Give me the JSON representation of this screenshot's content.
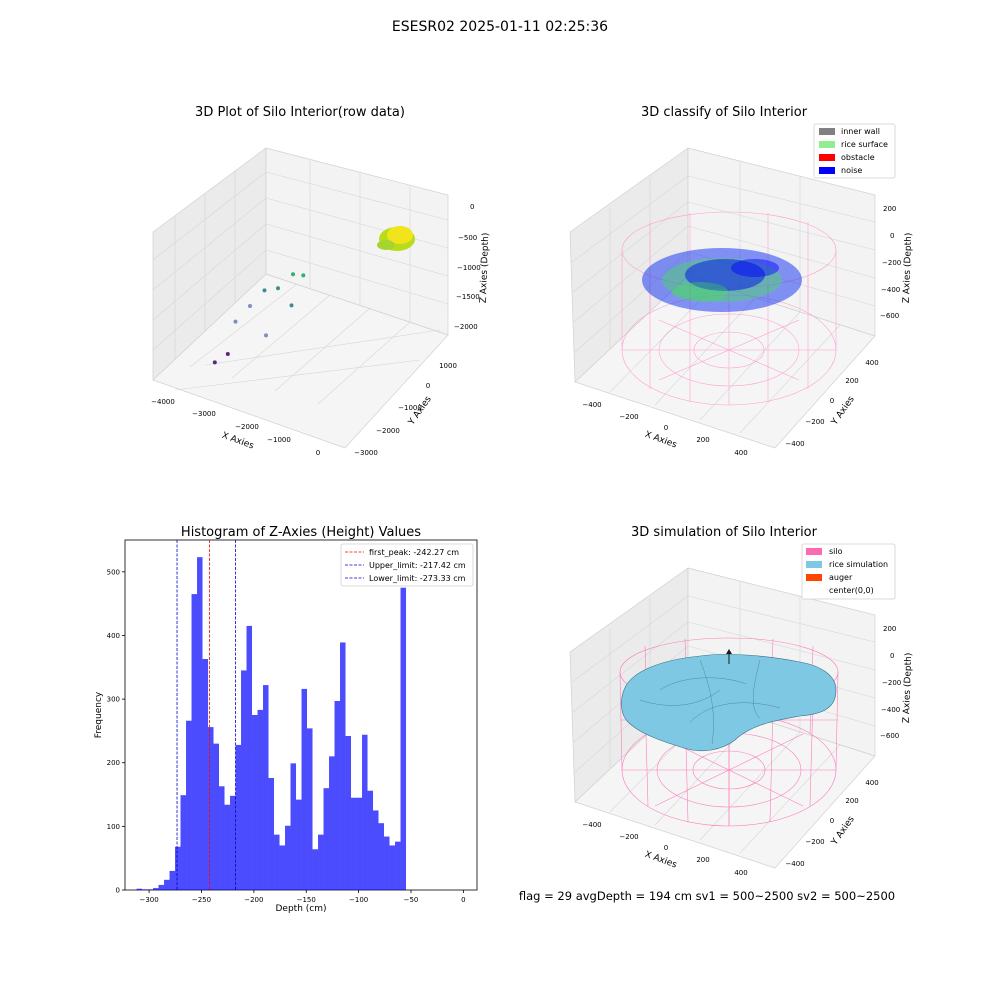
{
  "figure": {
    "suptitle": "ESESR02 2025-01-11 02:25:36",
    "status_line": "flag = 29  avgDepth = 194 cm  sv1 = 500~2500  sv2 = 500~2500"
  },
  "chart_data": [
    {
      "id": "raw",
      "type": "scatter3d",
      "title": "3D Plot of Silo Interior(row data)",
      "xlabel": "X Axies",
      "ylabel": "Y Axies",
      "zlabel": "Z Axies (Depth)",
      "x_ticks": [
        "−4000",
        "−3000",
        "−2000",
        "−1000",
        "0"
      ],
      "y_ticks": [
        "−3000",
        "−2000",
        "−1000",
        "0",
        "1000"
      ],
      "z_ticks": [
        "−2000",
        "−1500",
        "−1000",
        "−500",
        "0"
      ],
      "grid": true,
      "cluster_center": [
        0,
        0,
        -500
      ],
      "outliers": [
        {
          "x": -3900,
          "y": -800,
          "z": -2300
        },
        {
          "x": -3500,
          "y": -1200,
          "z": -2000
        },
        {
          "x": -3000,
          "y": 0,
          "z": -1700
        },
        {
          "x": -2400,
          "y": 400,
          "z": -1500
        },
        {
          "x": -2000,
          "y": -600,
          "z": -1800
        },
        {
          "x": -1800,
          "y": 800,
          "z": -1300
        },
        {
          "x": -1400,
          "y": 300,
          "z": -1100
        },
        {
          "x": -1000,
          "y": -200,
          "z": -1300
        },
        {
          "x": -800,
          "y": 600,
          "z": -900
        },
        {
          "x": -500,
          "y": 200,
          "z": -800
        }
      ]
    },
    {
      "id": "classify",
      "type": "scatter3d",
      "title": "3D classify of Silo Interior",
      "xlabel": "X Axies",
      "ylabel": "Y Axies",
      "zlabel": "Z Axies (Depth)",
      "x_ticks": [
        "−400",
        "−200",
        "0",
        "200",
        "400"
      ],
      "y_ticks": [
        "−400",
        "−200",
        "0",
        "200",
        "400"
      ],
      "z_ticks": [
        "−600",
        "−400",
        "−200",
        "0",
        "200"
      ],
      "grid": true,
      "legend": [
        {
          "label": "inner wall",
          "color": "#808080"
        },
        {
          "label": "rice surface",
          "color": "#90ee90"
        },
        {
          "label": "obstacle",
          "color": "#ff0000"
        },
        {
          "label": "noise",
          "color": "#0000ff"
        }
      ],
      "legend_placement": "top-right"
    },
    {
      "id": "hist",
      "type": "bar",
      "title": "Histogram of Z-Axies (Height) Values",
      "xlabel": "Depth (cm)",
      "ylabel": "Frequency",
      "xlim": [
        -323,
        13
      ],
      "ylim": [
        0,
        550
      ],
      "x_ticks": [
        -300,
        -250,
        -200,
        -150,
        -100,
        -50,
        0
      ],
      "y_ticks": [
        0,
        100,
        200,
        300,
        400,
        500
      ],
      "bin_start": -312,
      "bin_width": 5.25,
      "values": [
        2,
        1,
        1,
        3,
        8,
        16,
        30,
        68,
        149,
        266,
        465,
        523,
        363,
        256,
        230,
        163,
        134,
        148,
        228,
        345,
        415,
        275,
        283,
        322,
        176,
        87,
        70,
        101,
        199,
        142,
        316,
        254,
        64,
        87,
        160,
        210,
        297,
        389,
        242,
        145,
        145,
        244,
        156,
        125,
        105,
        84,
        70,
        76,
        475
      ],
      "color": "#0000ff",
      "vlines": [
        {
          "label": "first_peak: -242.27 cm",
          "x": -242.27,
          "color": "#ff0000"
        },
        {
          "label": "Upper_limit: -217.42 cm",
          "x": -217.42,
          "color": "#0000cc"
        },
        {
          "label": "Lower_limit: -273.33 cm",
          "x": -273.33,
          "color": "#0000cc"
        }
      ],
      "legend_placement": "top-right"
    },
    {
      "id": "simulation",
      "type": "surface3d",
      "title": "3D simulation of Silo Interior",
      "xlabel": "X Axies",
      "ylabel": "Y Axies",
      "zlabel": "Z Axies (Depth)",
      "x_ticks": [
        "−400",
        "−200",
        "0",
        "200",
        "400"
      ],
      "y_ticks": [
        "−400",
        "−200",
        "0",
        "200",
        "400"
      ],
      "z_ticks": [
        "−600",
        "−400",
        "−200",
        "0",
        "200"
      ],
      "grid": true,
      "legend": [
        {
          "label": "silo",
          "color": "#ff69b4"
        },
        {
          "label": "rice simulation",
          "color": "#7ec8e3"
        },
        {
          "label": "auger",
          "color": "#ff4500"
        },
        {
          "label": "center(0,0)",
          "color": ""
        }
      ],
      "legend_placement": "top-right"
    }
  ]
}
